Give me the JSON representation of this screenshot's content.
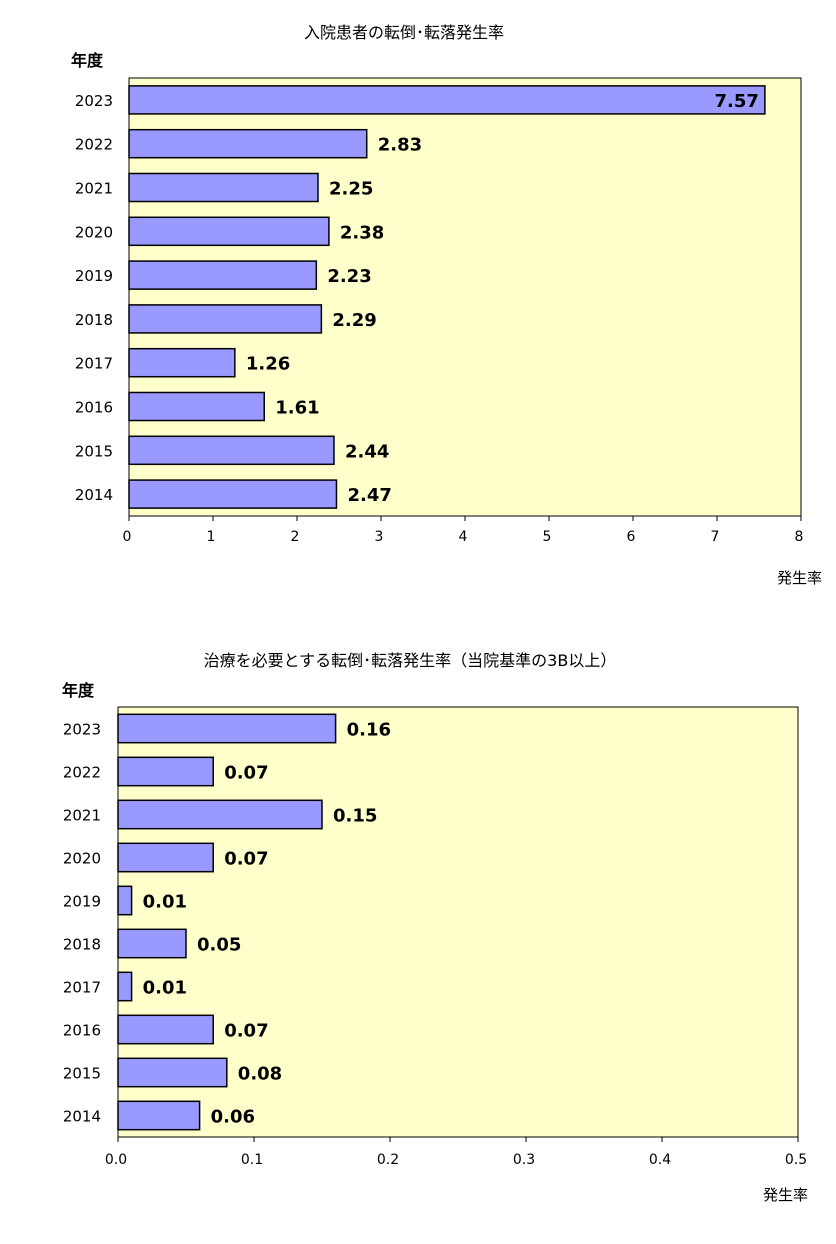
{
  "chart_data": [
    {
      "type": "bar",
      "orientation": "horizontal",
      "title": "入院患者の転倒･転落発生率",
      "ylabel": "年度",
      "xlabel": "発生率",
      "categories": [
        "2023",
        "2022",
        "2021",
        "2020",
        "2019",
        "2018",
        "2017",
        "2016",
        "2015",
        "2014"
      ],
      "values": [
        7.57,
        2.83,
        2.25,
        2.38,
        2.23,
        2.29,
        1.26,
        1.61,
        2.44,
        2.47
      ],
      "value_labels": [
        "7.57",
        "2.83",
        "2.25",
        "2.38",
        "2.23",
        "2.29",
        "1.26",
        "1.61",
        "2.44",
        "2.47"
      ],
      "xlim": [
        0,
        8
      ],
      "x_ticks": [
        "0",
        "1",
        "2",
        "3",
        "4",
        "5",
        "6",
        "7",
        "8"
      ],
      "grid": false,
      "colors": {
        "bar": "#9999ff",
        "plot_background": "#ffffcc"
      }
    },
    {
      "type": "bar",
      "orientation": "horizontal",
      "title": "治療を必要とする転倒･転落発生率（当院基準の3B以上）",
      "ylabel": "年度",
      "xlabel": "発生率",
      "categories": [
        "2023",
        "2022",
        "2021",
        "2020",
        "2019",
        "2018",
        "2017",
        "2016",
        "2015",
        "2014"
      ],
      "values": [
        0.16,
        0.07,
        0.15,
        0.07,
        0.01,
        0.05,
        0.01,
        0.07,
        0.08,
        0.06
      ],
      "value_labels": [
        "0.16",
        "0.07",
        "0.15",
        "0.07",
        "0.01",
        "0.05",
        "0.01",
        "0.07",
        "0.08",
        "0.06"
      ],
      "xlim": [
        0,
        0.5
      ],
      "x_ticks": [
        "0.0",
        "0.1",
        "0.2",
        "0.3",
        "0.4",
        "0.5"
      ],
      "grid": false,
      "colors": {
        "bar": "#9999ff",
        "plot_background": "#ffffcc"
      }
    }
  ]
}
